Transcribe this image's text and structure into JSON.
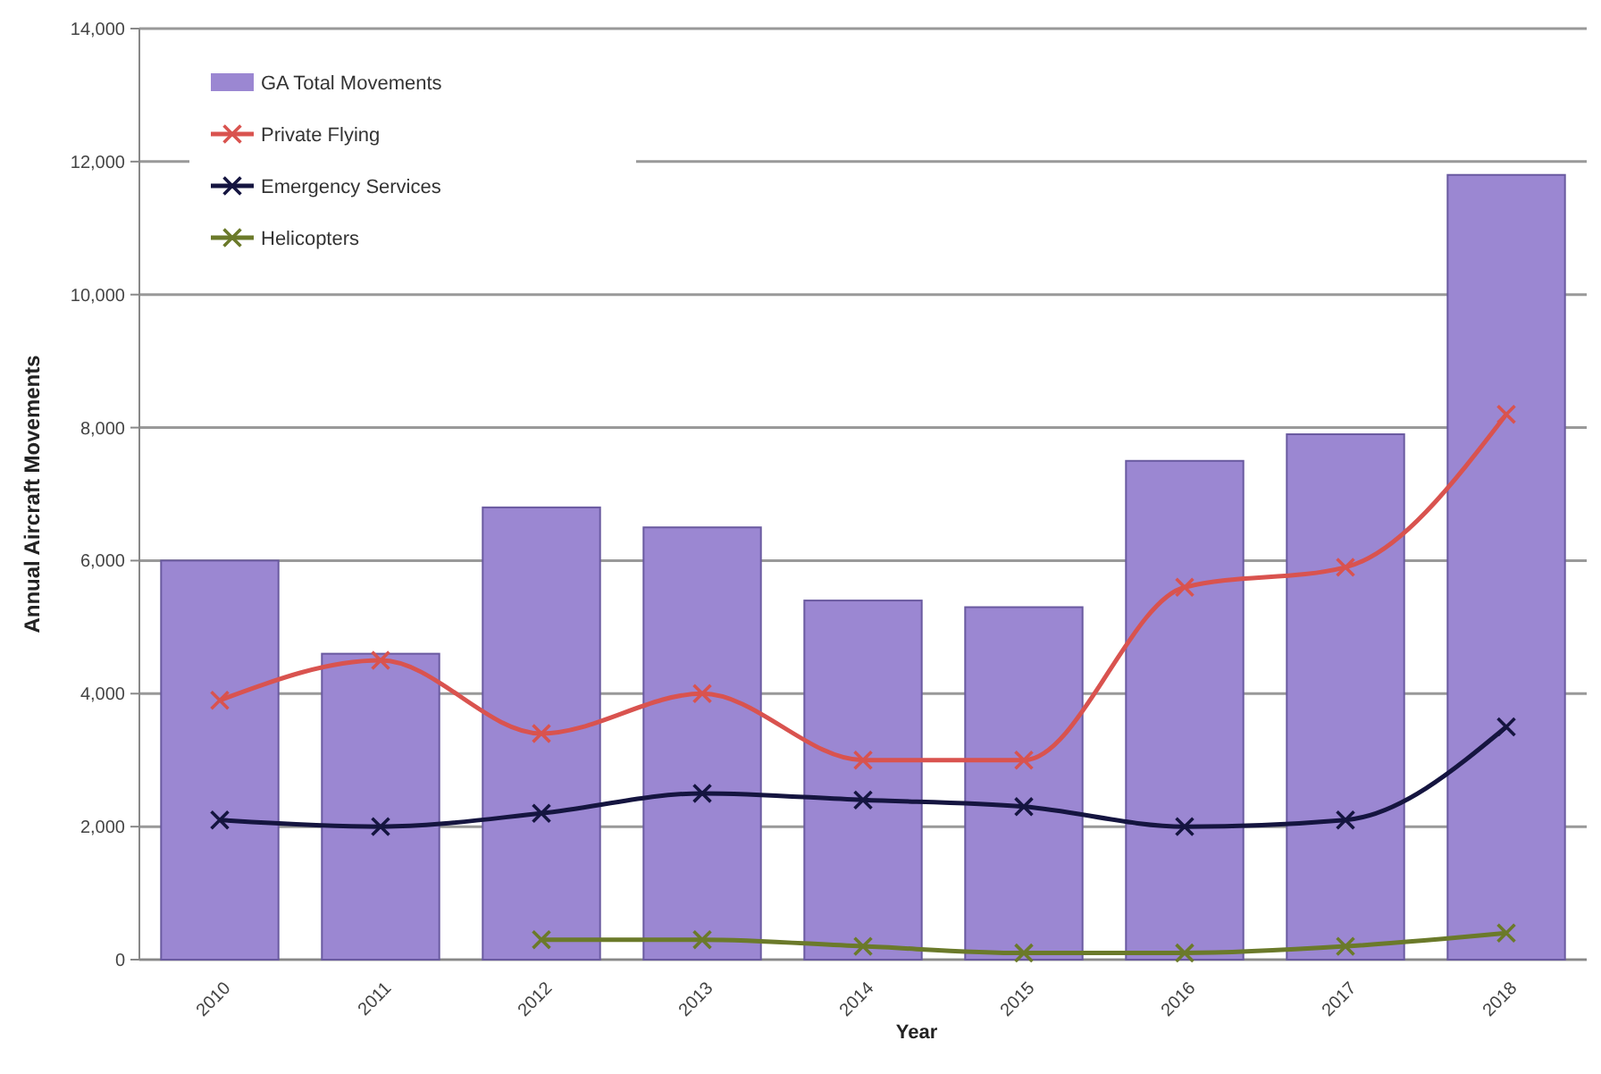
{
  "chart_data": {
    "type": "bar",
    "xlabel": "Year",
    "ylabel": "Annual Aircraft Movements",
    "categories": [
      "2010",
      "2011",
      "2012",
      "2013",
      "2014",
      "2015",
      "2016",
      "2017",
      "2018"
    ],
    "series": [
      {
        "name": "GA Total Movements",
        "color": "#9b87d2",
        "values": [
          6000,
          4600,
          6800,
          6500,
          5400,
          5300,
          7500,
          7900,
          11800
        ]
      },
      {
        "name": "Private Flying",
        "type": "line",
        "color": "#d9534f",
        "values": [
          3900,
          4500,
          3400,
          4000,
          3000,
          3000,
          5600,
          5900,
          8200
        ]
      },
      {
        "name": "Emergency Services",
        "type": "line",
        "color": "#151540",
        "values": [
          2100,
          2000,
          2200,
          2500,
          2400,
          2300,
          2000,
          2100,
          3500
        ]
      },
      {
        "name": "Helicopters",
        "type": "line",
        "color": "#6b7a2a",
        "values": [
          null,
          null,
          300,
          300,
          200,
          100,
          100,
          200,
          400
        ]
      }
    ],
    "ylim": [
      0,
      14000
    ],
    "yticks": [
      0,
      {
        "value": 2000,
        "label": "2,000"
      },
      {
        "value": 4000,
        "label": "4,000"
      },
      {
        "value": 6000,
        "label": "6,000"
      },
      {
        "value": 8000,
        "label": "8,000"
      },
      {
        "value": 10000,
        "label": "10,000"
      },
      {
        "value": 12000,
        "label": "12,000"
      },
      {
        "value": 14000,
        "label": "14,000"
      }
    ],
    "grid": "y",
    "legend": "top left",
    "marker": "cross"
  }
}
